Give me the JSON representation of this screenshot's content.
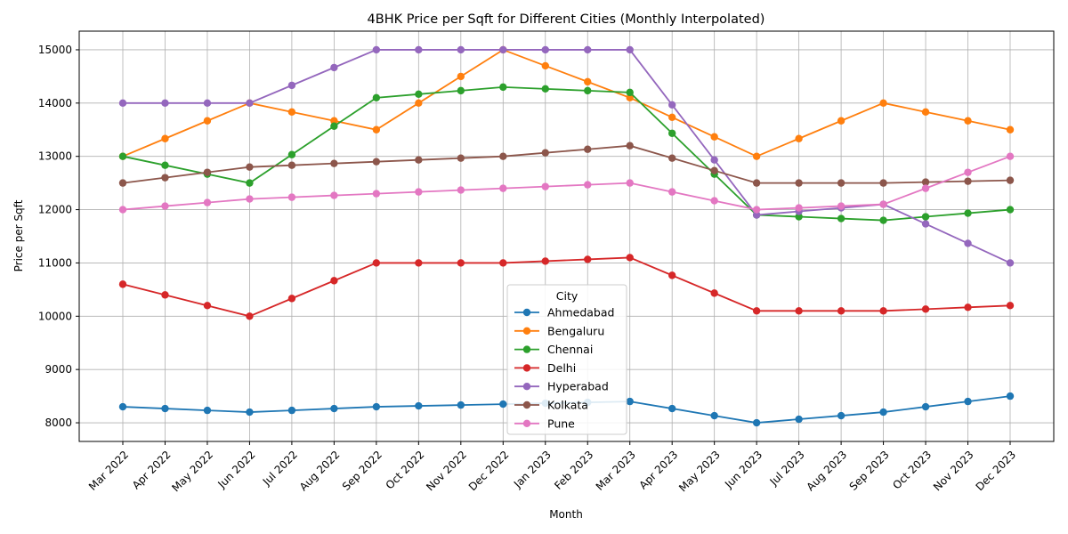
{
  "chart_data": {
    "type": "line",
    "title": "4BHK Price per Sqft for Different Cities (Monthly Interpolated)",
    "xlabel": "Month",
    "ylabel": "Price per Sqft",
    "x": [
      "Mar 2022",
      "Apr 2022",
      "May 2022",
      "Jun 2022",
      "Jul 2022",
      "Aug 2022",
      "Sep 2022",
      "Oct 2022",
      "Nov 2022",
      "Dec 2022",
      "Jan 2023",
      "Feb 2023",
      "Mar 2023",
      "Apr 2023",
      "May 2023",
      "Jun 2023",
      "Jul 2023",
      "Aug 2023",
      "Sep 2023",
      "Oct 2023",
      "Nov 2023",
      "Dec 2023"
    ],
    "ylim": [
      7650,
      15350
    ],
    "yticks": [
      8000,
      9000,
      10000,
      11000,
      12000,
      13000,
      14000,
      15000
    ],
    "grid": true,
    "marker": "circle",
    "legend": {
      "title": "City",
      "position": "bottom-center"
    },
    "series": [
      {
        "name": "Ahmedabad",
        "color": "#1f77b4",
        "values": [
          8300,
          8267,
          8233,
          8200,
          8233,
          8267,
          8300,
          8317,
          8333,
          8350,
          8367,
          8383,
          8400,
          8267,
          8133,
          8000,
          8067,
          8133,
          8200,
          8300,
          8400,
          8500
        ]
      },
      {
        "name": "Bengaluru",
        "color": "#ff7f0e",
        "values": [
          13000,
          13333,
          13667,
          14000,
          13833,
          13667,
          13500,
          14000,
          14500,
          15000,
          14700,
          14400,
          14100,
          13733,
          13367,
          13000,
          13333,
          13667,
          14000,
          13833,
          13667,
          13500
        ]
      },
      {
        "name": "Chennai",
        "color": "#2ca02c",
        "values": [
          13000,
          12833,
          12667,
          12500,
          13033,
          13567,
          14100,
          14167,
          14233,
          14300,
          14267,
          14233,
          14200,
          13433,
          12667,
          11900,
          11867,
          11833,
          11800,
          11867,
          11933,
          12000
        ]
      },
      {
        "name": "Delhi",
        "color": "#d62728",
        "values": [
          10600,
          10400,
          10200,
          10000,
          10333,
          10667,
          11000,
          11000,
          11000,
          11000,
          11033,
          11067,
          11100,
          10767,
          10433,
          10100,
          10100,
          10100,
          10100,
          10133,
          10167,
          10200
        ]
      },
      {
        "name": "Hyperabad",
        "color": "#9467bd",
        "values": [
          14000,
          14000,
          14000,
          14000,
          14333,
          14667,
          15000,
          15000,
          15000,
          15000,
          15000,
          15000,
          15000,
          13967,
          12933,
          11900,
          11967,
          12033,
          12100,
          11733,
          11367,
          11000
        ]
      },
      {
        "name": "Kolkata",
        "color": "#8c564b",
        "values": [
          12500,
          12600,
          12700,
          12800,
          12833,
          12867,
          12900,
          12933,
          12967,
          13000,
          13067,
          13133,
          13200,
          12967,
          12733,
          12500,
          12500,
          12500,
          12500,
          12517,
          12533,
          12550
        ]
      },
      {
        "name": "Pune",
        "color": "#e377c2",
        "values": [
          12000,
          12067,
          12133,
          12200,
          12233,
          12267,
          12300,
          12333,
          12367,
          12400,
          12433,
          12467,
          12500,
          12333,
          12167,
          12000,
          12033,
          12067,
          12100,
          12400,
          12700,
          13000
        ]
      }
    ]
  }
}
